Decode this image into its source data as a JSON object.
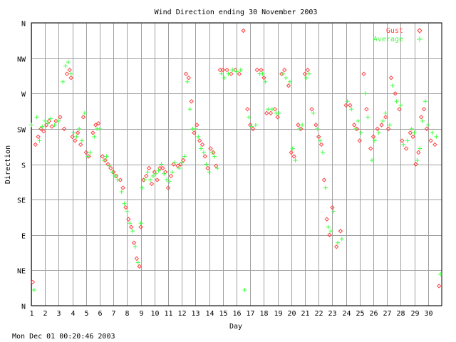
{
  "chart_data": {
    "type": "scatter",
    "title": "Wind Direction ending 30 November 2003",
    "xlabel": "Day",
    "ylabel": "Direction",
    "timestamp": "Mon Dec 01 00:20:46 2003",
    "grid": true,
    "legend_placement": "top-right",
    "xlim": [
      1,
      31
    ],
    "ylim": [
      0,
      360
    ],
    "x_ticks": [
      1,
      2,
      3,
      4,
      5,
      6,
      7,
      8,
      9,
      10,
      11,
      12,
      13,
      14,
      15,
      16,
      17,
      18,
      19,
      20,
      21,
      22,
      23,
      24,
      25,
      26,
      27,
      28,
      29,
      30
    ],
    "y_ticks": [
      {
        "label": "N",
        "value": 0
      },
      {
        "label": "NE",
        "value": 45
      },
      {
        "label": "E",
        "value": 90
      },
      {
        "label": "SE",
        "value": 135
      },
      {
        "label": "S",
        "value": 180
      },
      {
        "label": "SW",
        "value": 225
      },
      {
        "label": "W",
        "value": 270
      },
      {
        "label": "NW",
        "value": 315
      },
      {
        "label": "N",
        "value": 360
      }
    ],
    "series": [
      {
        "name": "Gust",
        "color": "#ff4040",
        "marker": "diamond",
        "points": [
          [
            1.1,
            30
          ],
          [
            1.3,
            205
          ],
          [
            1.5,
            215
          ],
          [
            1.7,
            225
          ],
          [
            1.9,
            222
          ],
          [
            2.1,
            230
          ],
          [
            2.3,
            235
          ],
          [
            2.5,
            228
          ],
          [
            2.8,
            235
          ],
          [
            3.1,
            240
          ],
          [
            3.4,
            225
          ],
          [
            3.6,
            295
          ],
          [
            3.8,
            300
          ],
          [
            3.9,
            290
          ],
          [
            4.0,
            215
          ],
          [
            4.2,
            210
          ],
          [
            4.4,
            220
          ],
          [
            4.6,
            205
          ],
          [
            4.8,
            240
          ],
          [
            5.0,
            195
          ],
          [
            5.2,
            190
          ],
          [
            5.5,
            220
          ],
          [
            5.7,
            230
          ],
          [
            5.9,
            232
          ],
          [
            6.2,
            190
          ],
          [
            6.4,
            185
          ],
          [
            6.6,
            180
          ],
          [
            6.8,
            175
          ],
          [
            7.0,
            170
          ],
          [
            7.2,
            165
          ],
          [
            7.5,
            160
          ],
          [
            7.7,
            150
          ],
          [
            7.9,
            125
          ],
          [
            8.1,
            110
          ],
          [
            8.3,
            100
          ],
          [
            8.5,
            80
          ],
          [
            8.7,
            60
          ],
          [
            8.9,
            50
          ],
          [
            9.0,
            100
          ],
          [
            9.2,
            160
          ],
          [
            9.4,
            165
          ],
          [
            9.6,
            175
          ],
          [
            9.8,
            155
          ],
          [
            10.0,
            170
          ],
          [
            10.2,
            160
          ],
          [
            10.4,
            175
          ],
          [
            10.6,
            175
          ],
          [
            10.8,
            170
          ],
          [
            11.0,
            150
          ],
          [
            11.2,
            165
          ],
          [
            11.4,
            180
          ],
          [
            11.7,
            178
          ],
          [
            11.9,
            180
          ],
          [
            12.1,
            185
          ],
          [
            12.3,
            295
          ],
          [
            12.5,
            290
          ],
          [
            12.7,
            260
          ],
          [
            12.9,
            220
          ],
          [
            13.1,
            230
          ],
          [
            13.3,
            210
          ],
          [
            13.5,
            205
          ],
          [
            13.7,
            190
          ],
          [
            13.9,
            175
          ],
          [
            14.1,
            200
          ],
          [
            14.3,
            195
          ],
          [
            14.5,
            178
          ],
          [
            14.8,
            300
          ],
          [
            15.0,
            300
          ],
          [
            15.3,
            300
          ],
          [
            15.6,
            295
          ],
          [
            15.9,
            300
          ],
          [
            16.2,
            295
          ],
          [
            16.5,
            350
          ],
          [
            16.8,
            250
          ],
          [
            17.0,
            230
          ],
          [
            17.2,
            225
          ],
          [
            17.5,
            300
          ],
          [
            17.8,
            300
          ],
          [
            18.0,
            290
          ],
          [
            18.2,
            245
          ],
          [
            18.5,
            245
          ],
          [
            18.8,
            250
          ],
          [
            19.0,
            240
          ],
          [
            19.3,
            295
          ],
          [
            19.5,
            300
          ],
          [
            19.8,
            280
          ],
          [
            20.0,
            195
          ],
          [
            20.2,
            190
          ],
          [
            20.5,
            230
          ],
          [
            20.7,
            225
          ],
          [
            21.0,
            295
          ],
          [
            21.2,
            300
          ],
          [
            21.5,
            250
          ],
          [
            21.8,
            230
          ],
          [
            22.0,
            215
          ],
          [
            22.2,
            205
          ],
          [
            22.4,
            160
          ],
          [
            22.6,
            110
          ],
          [
            22.8,
            90
          ],
          [
            23.0,
            125
          ],
          [
            23.3,
            75
          ],
          [
            23.6,
            95
          ],
          [
            24.0,
            255
          ],
          [
            24.3,
            255
          ],
          [
            24.6,
            230
          ],
          [
            24.8,
            225
          ],
          [
            25.0,
            210
          ],
          [
            25.3,
            295
          ],
          [
            25.5,
            250
          ],
          [
            25.8,
            200
          ],
          [
            26.0,
            215
          ],
          [
            26.3,
            225
          ],
          [
            26.6,
            230
          ],
          [
            26.9,
            240
          ],
          [
            27.1,
            225
          ],
          [
            27.3,
            290
          ],
          [
            27.6,
            270
          ],
          [
            27.9,
            250
          ],
          [
            28.1,
            210
          ],
          [
            28.4,
            200
          ],
          [
            28.7,
            220
          ],
          [
            28.9,
            215
          ],
          [
            29.1,
            180
          ],
          [
            29.3,
            195
          ],
          [
            29.5,
            240
          ],
          [
            29.7,
            250
          ],
          [
            29.9,
            225
          ],
          [
            30.2,
            210
          ],
          [
            30.5,
            205
          ],
          [
            30.8,
            25
          ]
        ]
      },
      {
        "name": "Average",
        "color": "#40ff40",
        "marker": "plus",
        "points": [
          [
            1.0,
            230
          ],
          [
            1.2,
            20
          ],
          [
            1.4,
            240
          ],
          [
            1.6,
            210
          ],
          [
            1.8,
            228
          ],
          [
            2.0,
            235
          ],
          [
            2.2,
            232
          ],
          [
            2.4,
            238
          ],
          [
            2.7,
            230
          ],
          [
            3.0,
            235
          ],
          [
            3.3,
            285
          ],
          [
            3.5,
            305
          ],
          [
            3.7,
            310
          ],
          [
            3.9,
            295
          ],
          [
            4.1,
            220
          ],
          [
            4.3,
            215
          ],
          [
            4.5,
            225
          ],
          [
            4.7,
            210
          ],
          [
            4.9,
            245
          ],
          [
            5.1,
            190
          ],
          [
            5.3,
            195
          ],
          [
            5.6,
            215
          ],
          [
            5.8,
            225
          ],
          [
            6.0,
            225
          ],
          [
            6.3,
            185
          ],
          [
            6.5,
            190
          ],
          [
            6.7,
            178
          ],
          [
            6.9,
            170
          ],
          [
            7.1,
            165
          ],
          [
            7.3,
            160
          ],
          [
            7.6,
            145
          ],
          [
            7.8,
            130
          ],
          [
            8.0,
            120
          ],
          [
            8.2,
            105
          ],
          [
            8.4,
            95
          ],
          [
            8.6,
            75
          ],
          [
            8.8,
            55
          ],
          [
            9.0,
            105
          ],
          [
            9.1,
            150
          ],
          [
            9.3,
            160
          ],
          [
            9.5,
            170
          ],
          [
            9.7,
            160
          ],
          [
            9.9,
            165
          ],
          [
            10.1,
            168
          ],
          [
            10.3,
            172
          ],
          [
            10.5,
            180
          ],
          [
            10.7,
            168
          ],
          [
            10.9,
            160
          ],
          [
            11.1,
            158
          ],
          [
            11.3,
            170
          ],
          [
            11.5,
            182
          ],
          [
            11.8,
            175
          ],
          [
            12.0,
            182
          ],
          [
            12.2,
            190
          ],
          [
            12.4,
            285
          ],
          [
            12.6,
            250
          ],
          [
            12.8,
            225
          ],
          [
            13.0,
            225
          ],
          [
            13.2,
            215
          ],
          [
            13.4,
            200
          ],
          [
            13.6,
            195
          ],
          [
            13.8,
            180
          ],
          [
            14.0,
            170
          ],
          [
            14.2,
            195
          ],
          [
            14.4,
            190
          ],
          [
            14.6,
            175
          ],
          [
            14.9,
            295
          ],
          [
            15.1,
            290
          ],
          [
            15.4,
            295
          ],
          [
            15.7,
            300
          ],
          [
            16.0,
            298
          ],
          [
            16.3,
            300
          ],
          [
            16.6,
            20
          ],
          [
            16.9,
            240
          ],
          [
            17.1,
            228
          ],
          [
            17.4,
            230
          ],
          [
            17.7,
            295
          ],
          [
            17.9,
            295
          ],
          [
            18.1,
            285
          ],
          [
            18.3,
            250
          ],
          [
            18.6,
            250
          ],
          [
            18.9,
            245
          ],
          [
            19.1,
            245
          ],
          [
            19.4,
            295
          ],
          [
            19.6,
            290
          ],
          [
            19.9,
            285
          ],
          [
            20.1,
            200
          ],
          [
            20.3,
            185
          ],
          [
            20.6,
            225
          ],
          [
            20.8,
            230
          ],
          [
            21.1,
            290
          ],
          [
            21.3,
            295
          ],
          [
            21.6,
            245
          ],
          [
            21.9,
            225
          ],
          [
            22.1,
            210
          ],
          [
            22.3,
            195
          ],
          [
            22.5,
            150
          ],
          [
            22.7,
            100
          ],
          [
            22.9,
            95
          ],
          [
            23.1,
            120
          ],
          [
            23.4,
            80
          ],
          [
            23.7,
            85
          ],
          [
            24.1,
            260
          ],
          [
            24.4,
            250
          ],
          [
            24.7,
            225
          ],
          [
            24.9,
            235
          ],
          [
            25.1,
            220
          ],
          [
            25.4,
            270
          ],
          [
            25.6,
            240
          ],
          [
            25.9,
            185
          ],
          [
            26.1,
            210
          ],
          [
            26.4,
            220
          ],
          [
            26.7,
            235
          ],
          [
            26.9,
            245
          ],
          [
            27.2,
            230
          ],
          [
            27.4,
            280
          ],
          [
            27.7,
            260
          ],
          [
            28.0,
            255
          ],
          [
            28.2,
            205
          ],
          [
            28.5,
            210
          ],
          [
            28.8,
            225
          ],
          [
            29.0,
            220
          ],
          [
            29.2,
            185
          ],
          [
            29.4,
            200
          ],
          [
            29.6,
            235
          ],
          [
            29.8,
            260
          ],
          [
            30.0,
            230
          ],
          [
            30.3,
            220
          ],
          [
            30.6,
            215
          ],
          [
            30.9,
            40
          ]
        ]
      }
    ]
  }
}
